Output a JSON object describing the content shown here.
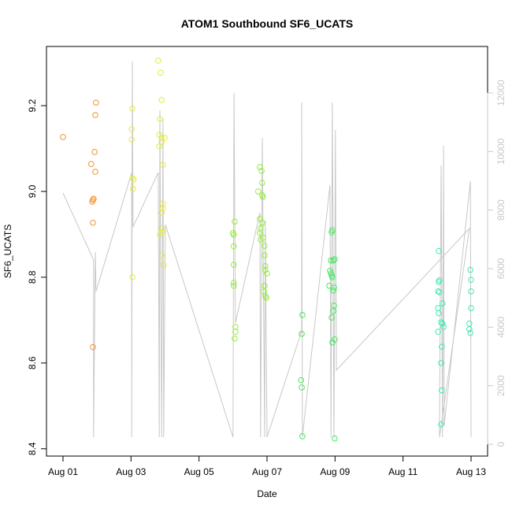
{
  "chart_data": {
    "type": "scatter",
    "title": "ATOM1 Southbound SF6_UCATS",
    "x_label": "Date",
    "y_label": "SF6_UCATS",
    "xlim": [
      0.514,
      13.486
    ],
    "xticks": [
      {
        "value": 1,
        "label": "Aug 01"
      },
      {
        "value": 3,
        "label": "Aug 03"
      },
      {
        "value": 5,
        "label": "Aug 05"
      },
      {
        "value": 7,
        "label": "Aug 07"
      },
      {
        "value": 9,
        "label": "Aug 09"
      },
      {
        "value": 11,
        "label": "Aug 11"
      },
      {
        "value": 13,
        "label": "Aug 13"
      }
    ],
    "ylim": [
      8.383,
      9.338
    ],
    "yticks": [
      8.4,
      8.6,
      8.8,
      {
        "value": 9,
        "label": "9.0"
      },
      9.2
    ],
    "y2lim": [
      -404,
      13588
    ],
    "y2ticks": [
      0,
      2000,
      4000,
      6000,
      8000,
      10000,
      12000
    ],
    "y2_color": "#c8c8c8",
    "series": [
      {
        "type": "line",
        "axis": "y2",
        "color": "#c8c8c8",
        "x": [
          1.0,
          1.9,
          1.9,
          1.95,
          1.97,
          3.02,
          3.02,
          3.04,
          3.06,
          3.8,
          3.83,
          3.85,
          3.9,
          3.94,
          3.96,
          4.01,
          6.0,
          6.03,
          6.07,
          6.79,
          6.81,
          6.86,
          6.93,
          6.95,
          7.0,
          8.02,
          8.02,
          8.04,
          8.85,
          8.88,
          8.92,
          8.97,
          9.01,
          9.04,
          12.95,
          12.07,
          12.12,
          12.16,
          12.19,
          12.21,
          12.98,
          13.0
        ],
        "values": [
          8582,
          6296,
          242,
          6564,
          5219,
          9282,
          242,
          13075,
          7425,
          9282,
          242,
          11407,
          242,
          11138,
          242,
          7506,
          242,
          11999,
          4143,
          7910,
          242,
          10466,
          242,
          7641,
          242,
          3874,
          11676,
          242,
          8851,
          242,
          11676,
          242,
          10735,
          2529,
          7372,
          242,
          9524,
          242,
          10197,
          646,
          8986,
          242
        ]
      },
      {
        "type": "scatter",
        "color": "#f0942c",
        "x": [
          1.0,
          1.83,
          1.93,
          1.95,
          1.97,
          1.95,
          1.9,
          1.88,
          1.86,
          1.88,
          1.88
        ],
        "values": [
          9.127,
          9.064,
          9.092,
          9.178,
          9.207,
          9.046,
          8.983,
          8.98,
          8.976,
          8.927,
          8.637
        ]
      },
      {
        "type": "scatter",
        "color": "#e4ec3c",
        "x": [
          3.04,
          3.02,
          3.02,
          3.04,
          3.08,
          3.06,
          3.04,
          3.8,
          3.87,
          3.9,
          3.85,
          3.83,
          3.9,
          3.99,
          3.9,
          3.83,
          3.94,
          3.94,
          3.94,
          3.9,
          3.9,
          3.92,
          3.85,
          3.9,
          3.96
        ],
        "values": [
          9.193,
          9.145,
          9.121,
          9.031,
          9.028,
          9.006,
          8.8,
          9.305,
          9.277,
          9.213,
          9.169,
          9.132,
          9.125,
          9.125,
          9.116,
          9.105,
          9.062,
          8.972,
          8.96,
          8.95,
          8.914,
          8.905,
          8.899,
          8.851,
          8.828
        ]
      },
      {
        "type": "scatter",
        "color": "#96ec3c",
        "x": [
          6.05,
          6.0,
          6.02,
          6.02,
          6.02,
          6.02,
          6.02,
          6.07,
          6.07,
          6.05,
          6.79,
          6.84,
          6.86,
          6.74,
          6.86,
          6.88,
          6.79,
          6.86,
          6.81,
          6.79,
          6.88,
          6.81,
          6.93,
          6.93,
          6.95,
          6.95,
          7.0,
          6.93,
          6.91,
          6.95,
          6.98
        ],
        "values": [
          8.93,
          8.903,
          8.899,
          8.872,
          8.829,
          8.787,
          8.78,
          8.684,
          8.673,
          8.657,
          9.057,
          9.048,
          9.02,
          9.0,
          8.991,
          8.987,
          8.936,
          8.927,
          8.914,
          8.903,
          8.892,
          8.888,
          8.873,
          8.851,
          8.826,
          8.817,
          8.809,
          8.78,
          8.767,
          8.756,
          8.752
        ]
      },
      {
        "type": "scatter",
        "color": "#44e85c",
        "x": [
          8.02,
          8.04,
          8.0,
          8.02,
          8.04,
          8.9,
          8.92,
          8.88,
          8.95,
          8.99,
          8.85,
          8.88,
          8.9,
          8.92,
          8.83,
          8.97,
          8.95,
          8.97,
          8.95,
          8.9,
          8.99,
          8.92,
          8.99
        ],
        "values": [
          8.668,
          8.712,
          8.56,
          8.543,
          8.429,
          8.905,
          8.91,
          8.839,
          8.839,
          8.842,
          8.815,
          8.809,
          8.804,
          8.8,
          8.78,
          8.776,
          8.769,
          8.734,
          8.721,
          8.706,
          8.655,
          8.648,
          8.424
        ]
      },
      {
        "type": "scatter",
        "color": "#3cecac",
        "x": [
          12.05,
          12.07,
          12.05,
          12.03,
          12.07,
          12.03,
          12.05,
          12.12,
          12.16,
          12.19,
          12.16,
          12.03,
          12.14,
          12.12,
          12.14,
          12.12,
          12.98,
          13.0,
          13.0,
          13.0,
          12.95,
          12.95,
          12.98
        ],
        "values": [
          8.861,
          8.793,
          8.789,
          8.767,
          8.765,
          8.728,
          8.716,
          8.695,
          8.692,
          8.684,
          8.739,
          8.673,
          8.638,
          8.6,
          8.536,
          8.457,
          8.817,
          8.794,
          8.767,
          8.728,
          8.692,
          8.679,
          8.67
        ]
      }
    ]
  }
}
